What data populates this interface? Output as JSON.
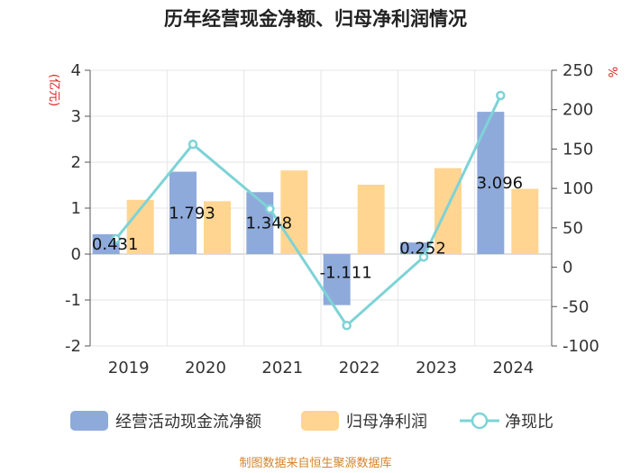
{
  "chart_data": {
    "type": "bar",
    "title": "历年经营现金净额、归母净利润情况",
    "categories": [
      "2019",
      "2020",
      "2021",
      "2022",
      "2023",
      "2024"
    ],
    "y_left": {
      "unit_label": "(亿元)",
      "ylim": [
        -2,
        4
      ],
      "ticks": [
        "4",
        "3",
        "2",
        "1",
        "0",
        "-1",
        "-2"
      ]
    },
    "y_right": {
      "unit_label": "%",
      "ylim": [
        -100,
        250
      ],
      "ticks": [
        "250",
        "200",
        "150",
        "100",
        "50",
        "0",
        "-50",
        "-100"
      ]
    },
    "series": [
      {
        "name": "经营活动现金流净额",
        "kind": "bar",
        "axis": "left",
        "color": "#8eaadb",
        "values": [
          0.431,
          1.793,
          1.348,
          -1.111,
          0.252,
          3.096
        ],
        "labels": [
          "0.431",
          "1.793",
          "1.348",
          "-1.111",
          "0.252",
          "3.096"
        ]
      },
      {
        "name": "归母净利润",
        "kind": "bar",
        "axis": "left",
        "color": "#ffd591",
        "values": [
          1.18,
          1.15,
          1.82,
          1.51,
          1.87,
          1.42
        ]
      },
      {
        "name": "净现比",
        "kind": "line",
        "axis": "right",
        "color": "#7ed3d6",
        "values": [
          36,
          156,
          74,
          -74,
          13,
          218
        ]
      }
    ],
    "grid": true,
    "legend_position": "bottom",
    "source": "制图数据来自恒生聚源数据库"
  }
}
